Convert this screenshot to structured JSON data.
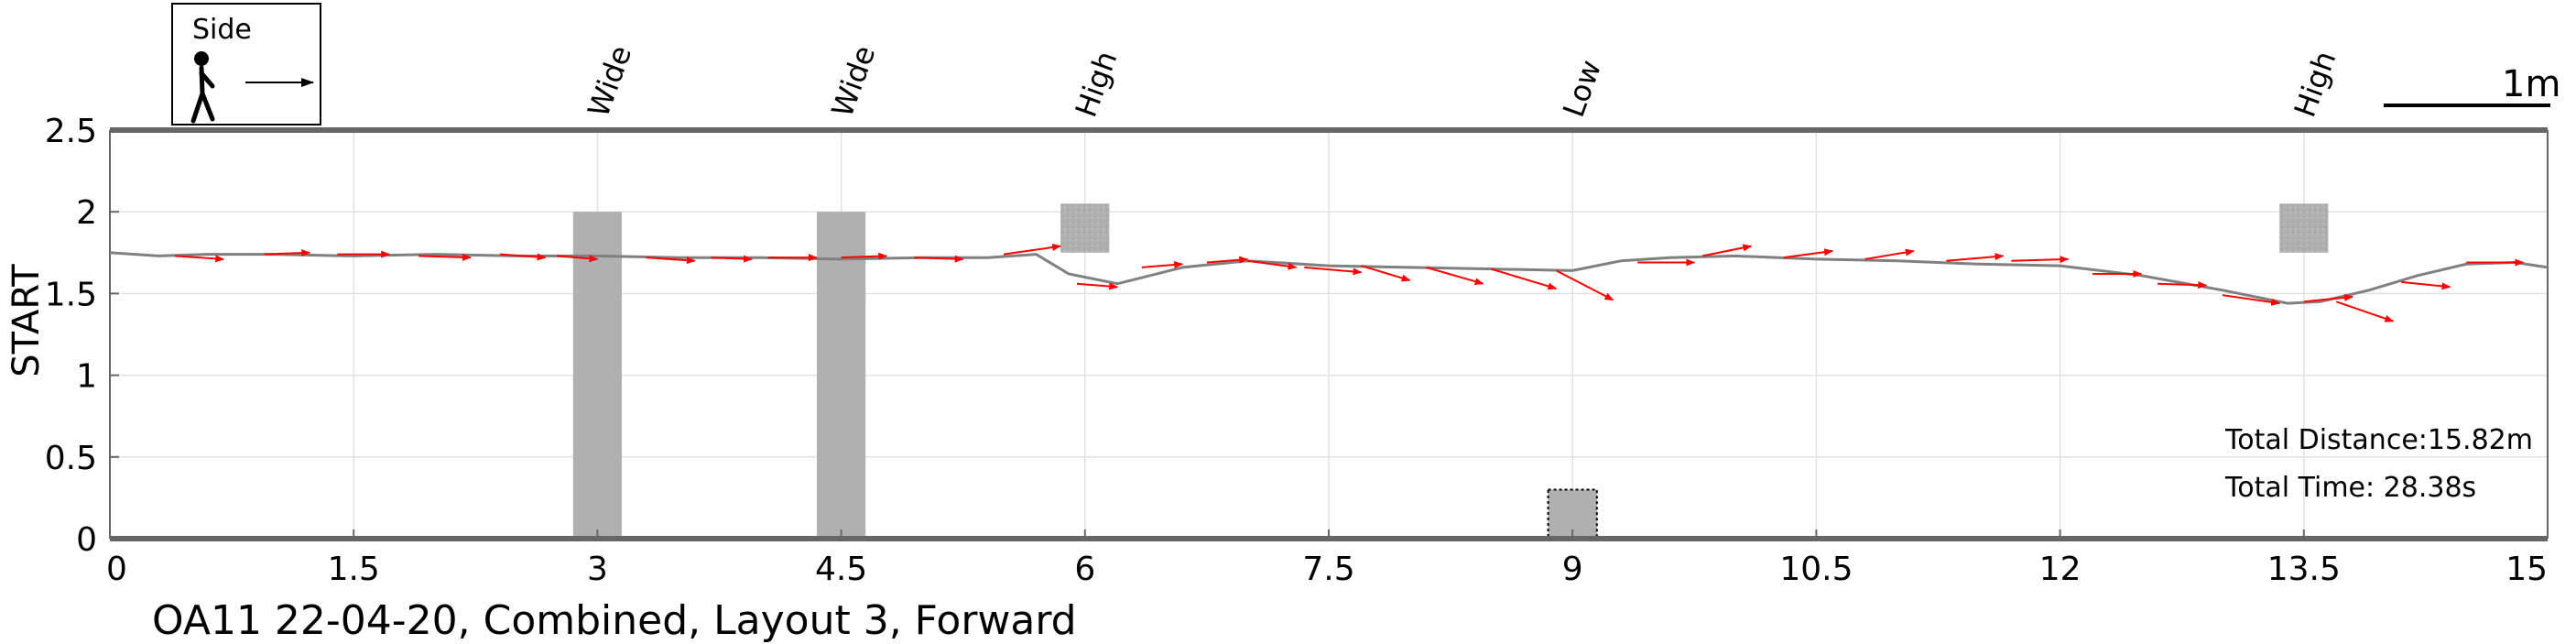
{
  "figure": {
    "caption": "OA11 22-04-20, Combined, Layout 3, Forward",
    "ylabel": "START",
    "legend_box": {
      "label": "Side",
      "icons": [
        "walking-person-icon",
        "arrow-right-icon"
      ]
    },
    "scale_bar": {
      "label": "1m",
      "length_m": 1
    },
    "stats": {
      "distance": "Total Distance:15.82m",
      "time": "Total Time: 28.38s"
    }
  },
  "colors": {
    "path": "#808080",
    "arrow": "#ff0000",
    "obstacle": "#b0b0b0",
    "axis": "#666666",
    "grid": "#e3e3e3"
  },
  "chart_data": {
    "type": "line",
    "title": "",
    "xlim": [
      0,
      15
    ],
    "ylim": [
      0,
      2.5
    ],
    "xticks": [
      {
        "v": 0,
        "label": "0"
      },
      {
        "v": 1.5,
        "label": "1.5"
      },
      {
        "v": 3,
        "label": "3"
      },
      {
        "v": 4.5,
        "label": "4.5"
      },
      {
        "v": 6,
        "label": "6"
      },
      {
        "v": 7.5,
        "label": "7.5"
      },
      {
        "v": 9,
        "label": "9"
      },
      {
        "v": 10.5,
        "label": "10.5"
      },
      {
        "v": 12,
        "label": "12"
      },
      {
        "v": 13.5,
        "label": "13.5"
      },
      {
        "v": 15,
        "label": "15"
      }
    ],
    "yticks": [
      {
        "v": 0,
        "label": "0"
      },
      {
        "v": 0.5,
        "label": "0.5"
      },
      {
        "v": 1,
        "label": "1"
      },
      {
        "v": 1.5,
        "label": "1.5"
      },
      {
        "v": 2,
        "label": "2"
      },
      {
        "v": 2.5,
        "label": "2.5"
      }
    ],
    "grid": true,
    "path": {
      "x": [
        0,
        0.3,
        0.6,
        1,
        1.5,
        2,
        2.5,
        3,
        3.5,
        4,
        4.5,
        5,
        5.4,
        5.7,
        5.9,
        6.2,
        6.6,
        7,
        7.5,
        8,
        8.5,
        9,
        9.3,
        9.6,
        10,
        10.5,
        11,
        11.5,
        12,
        12.5,
        13,
        13.4,
        13.6,
        13.9,
        14.2,
        14.5,
        14.8,
        15
      ],
      "y": [
        1.75,
        1.73,
        1.74,
        1.74,
        1.73,
        1.74,
        1.73,
        1.73,
        1.72,
        1.72,
        1.71,
        1.72,
        1.72,
        1.74,
        1.62,
        1.56,
        1.66,
        1.7,
        1.67,
        1.66,
        1.65,
        1.64,
        1.7,
        1.72,
        1.73,
        1.71,
        1.7,
        1.68,
        1.67,
        1.61,
        1.52,
        1.44,
        1.45,
        1.52,
        1.61,
        1.68,
        1.69,
        1.66
      ]
    },
    "arrows": [
      [
        0.4,
        1.73,
        0.3,
        -0.02
      ],
      [
        0.95,
        1.74,
        0.28,
        0.01
      ],
      [
        1.4,
        1.74,
        0.32,
        0.0
      ],
      [
        1.9,
        1.73,
        0.32,
        -0.01
      ],
      [
        2.4,
        1.74,
        0.28,
        -0.02
      ],
      [
        2.75,
        1.73,
        0.25,
        -0.02
      ],
      [
        3.3,
        1.72,
        0.3,
        -0.02
      ],
      [
        3.7,
        1.72,
        0.25,
        -0.01
      ],
      [
        4.05,
        1.72,
        0.3,
        0.0
      ],
      [
        4.5,
        1.72,
        0.28,
        0.01
      ],
      [
        4.95,
        1.72,
        0.3,
        -0.01
      ],
      [
        5.5,
        1.74,
        0.35,
        0.05
      ],
      [
        5.95,
        1.56,
        0.25,
        -0.02
      ],
      [
        6.35,
        1.66,
        0.25,
        0.02
      ],
      [
        6.75,
        1.69,
        0.25,
        0.02
      ],
      [
        7.0,
        1.7,
        0.3,
        -0.04
      ],
      [
        7.35,
        1.66,
        0.35,
        -0.03
      ],
      [
        7.7,
        1.67,
        0.3,
        -0.09
      ],
      [
        8.1,
        1.66,
        0.35,
        -0.1
      ],
      [
        8.5,
        1.65,
        0.4,
        -0.12
      ],
      [
        8.9,
        1.64,
        0.35,
        -0.18
      ],
      [
        9.4,
        1.69,
        0.35,
        0.0
      ],
      [
        9.8,
        1.73,
        0.3,
        0.06
      ],
      [
        10.3,
        1.72,
        0.3,
        0.04
      ],
      [
        10.8,
        1.71,
        0.3,
        0.05
      ],
      [
        11.3,
        1.7,
        0.35,
        0.03
      ],
      [
        11.7,
        1.7,
        0.35,
        0.01
      ],
      [
        12.2,
        1.62,
        0.3,
        0.0
      ],
      [
        12.6,
        1.56,
        0.3,
        -0.01
      ],
      [
        13.0,
        1.49,
        0.35,
        -0.05
      ],
      [
        13.5,
        1.45,
        0.3,
        0.03
      ],
      [
        13.7,
        1.45,
        0.35,
        -0.12
      ],
      [
        14.1,
        1.57,
        0.3,
        -0.03
      ],
      [
        14.5,
        1.69,
        0.35,
        0.0
      ]
    ],
    "obstacles": [
      {
        "label": "Wide",
        "x0": 2.85,
        "x1": 3.15,
        "y0": 0,
        "y1": 2.0,
        "kind": "solid"
      },
      {
        "label": "Wide",
        "x0": 4.35,
        "x1": 4.65,
        "y0": 0,
        "y1": 2.0,
        "kind": "solid"
      },
      {
        "label": "High",
        "x0": 5.85,
        "x1": 6.15,
        "y0": 1.75,
        "y1": 2.05,
        "kind": "textured"
      },
      {
        "label": "Low",
        "x0": 8.85,
        "x1": 9.15,
        "y0": 0,
        "y1": 0.3,
        "kind": "dotted"
      },
      {
        "label": "High",
        "x0": 13.35,
        "x1": 13.65,
        "y0": 1.75,
        "y1": 2.05,
        "kind": "textured"
      }
    ]
  }
}
